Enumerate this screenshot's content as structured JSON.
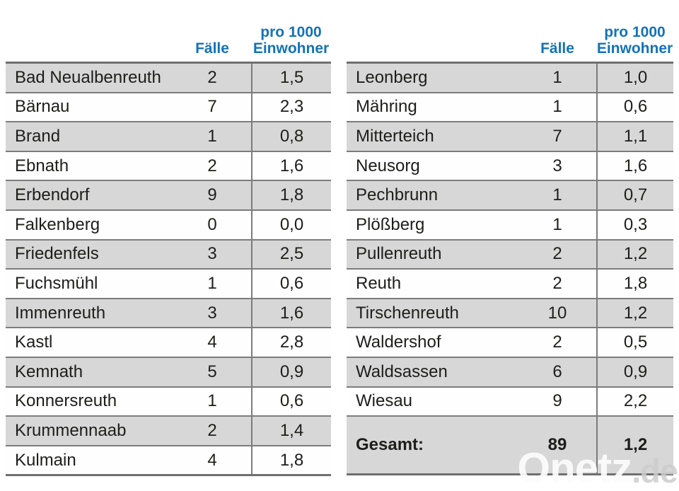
{
  "header": {
    "cases_label": "Fälle",
    "rate_line1": "pro 1000",
    "rate_line2": "Einwohner"
  },
  "chart_data": [
    {
      "type": "table",
      "columns": [
        "",
        "Fälle",
        "pro 1000 Einwohner"
      ],
      "rows": [
        {
          "name": "Bad Neualbenreuth",
          "cases": "2",
          "rate": "1,5"
        },
        {
          "name": "Bärnau",
          "cases": "7",
          "rate": "2,3"
        },
        {
          "name": "Brand",
          "cases": "1",
          "rate": "0,8"
        },
        {
          "name": "Ebnath",
          "cases": "2",
          "rate": "1,6"
        },
        {
          "name": "Erbendorf",
          "cases": "9",
          "rate": "1,8"
        },
        {
          "name": "Falkenberg",
          "cases": "0",
          "rate": "0,0"
        },
        {
          "name": "Friedenfels",
          "cases": "3",
          "rate": "2,5"
        },
        {
          "name": "Fuchsmühl",
          "cases": "1",
          "rate": "0,6"
        },
        {
          "name": "Immenreuth",
          "cases": "3",
          "rate": "1,6"
        },
        {
          "name": "Kastl",
          "cases": "4",
          "rate": "2,8"
        },
        {
          "name": "Kemnath",
          "cases": "5",
          "rate": "0,9"
        },
        {
          "name": "Konnersreuth",
          "cases": "1",
          "rate": "0,6"
        },
        {
          "name": "Krummennaab",
          "cases": "2",
          "rate": "1,4"
        },
        {
          "name": "Kulmain",
          "cases": "4",
          "rate": "1,8"
        }
      ]
    },
    {
      "type": "table",
      "columns": [
        "",
        "Fälle",
        "pro 1000 Einwohner"
      ],
      "rows": [
        {
          "name": "Leonberg",
          "cases": "1",
          "rate": "1,0"
        },
        {
          "name": "Mähring",
          "cases": "1",
          "rate": "0,6"
        },
        {
          "name": "Mitterteich",
          "cases": "7",
          "rate": "1,1"
        },
        {
          "name": "Neusorg",
          "cases": "3",
          "rate": "1,6"
        },
        {
          "name": "Pechbrunn",
          "cases": "1",
          "rate": "0,7"
        },
        {
          "name": "Plößberg",
          "cases": "1",
          "rate": "0,3"
        },
        {
          "name": "Pullenreuth",
          "cases": "2",
          "rate": "1,2"
        },
        {
          "name": "Reuth",
          "cases": "2",
          "rate": "1,8"
        },
        {
          "name": "Tirschenreuth",
          "cases": "10",
          "rate": "1,2"
        },
        {
          "name": "Waldershof",
          "cases": "2",
          "rate": "0,5"
        },
        {
          "name": "Waldsassen",
          "cases": "6",
          "rate": "0,9"
        },
        {
          "name": "Wiesau",
          "cases": "9",
          "rate": "2,2"
        }
      ],
      "total": {
        "name": "Gesamt:",
        "cases": "89",
        "rate": "1,2"
      }
    }
  ],
  "watermark": {
    "brand": "Onetz",
    "tld": ".de"
  },
  "colors": {
    "header_blue": "#1373b5",
    "row_gray": "#d7d7d7",
    "row_white": "#fefefe",
    "border_gray": "#7c7c7c",
    "text": "#1d1d1b"
  }
}
